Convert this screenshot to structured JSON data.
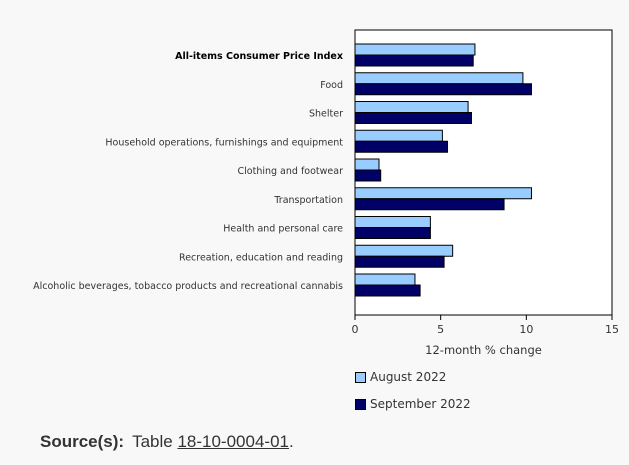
{
  "chart_data": {
    "type": "bar",
    "orientation": "horizontal",
    "categories": [
      "All-items Consumer Price Index",
      "Food",
      "Shelter",
      "Household operations, furnishings and equipment",
      "Clothing and footwear",
      "Transportation",
      "Health and personal care",
      "Recreation, education and reading",
      "Alcoholic beverages, tobacco products and recreational cannabis"
    ],
    "bold_categories": [
      "All-items Consumer Price Index"
    ],
    "series": [
      {
        "name": "August 2022",
        "color": "#99ccff",
        "values": [
          7.0,
          9.8,
          6.6,
          5.1,
          1.4,
          10.3,
          4.4,
          5.7,
          3.5
        ]
      },
      {
        "name": "September 2022",
        "color": "#000066",
        "values": [
          6.9,
          10.3,
          6.8,
          5.4,
          1.5,
          8.7,
          4.4,
          5.2,
          3.8
        ]
      }
    ],
    "xlabel": "12-month % change",
    "ylabel": "",
    "xlim": [
      0,
      15
    ],
    "xticks": [
      0,
      5,
      10,
      15
    ],
    "grid": false,
    "legend_placement": "bottom"
  },
  "source": {
    "label": "Source(s):",
    "prefix": "Table",
    "link_text": "18-10-0004-01",
    "suffix": "."
  }
}
